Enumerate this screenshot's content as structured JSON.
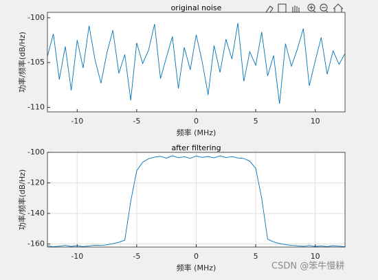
{
  "chart_data": [
    {
      "type": "line",
      "title": "original noise",
      "xlabel": "频率 (MHz)",
      "ylabel": "功率/频率(dB/Hz)",
      "x": [
        -12.5,
        -12,
        -11.5,
        -11,
        -10.5,
        -10,
        -9.5,
        -9,
        -8.5,
        -8,
        -7.5,
        -7,
        -6.5,
        -6,
        -5.5,
        -5,
        -4.5,
        -4,
        -3.5,
        -3,
        -2.5,
        -2,
        -1.5,
        -1,
        -0.5,
        0,
        0.5,
        1,
        1.5,
        2,
        2.5,
        3,
        3.5,
        4,
        4.5,
        5,
        5.5,
        6,
        6.5,
        7,
        7.5,
        8,
        8.5,
        9,
        9.5,
        10,
        10.5,
        11,
        11.5,
        12,
        12.5
      ],
      "series": [
        {
          "color": "#0072bd",
          "values": [
            -104.3,
            -101.8,
            -106.9,
            -103.2,
            -108.1,
            -102.5,
            -105.6,
            -100.9,
            -104.7,
            -107.3,
            -103.9,
            -101.4,
            -106.2,
            -104.1,
            -109.2,
            -102.8,
            -105.1,
            -103.6,
            -100.7,
            -106.8,
            -104.4,
            -102.1,
            -107.9,
            -103.3,
            -105.8,
            -101.9,
            -104.9,
            -108.6,
            -103.1,
            -106.1,
            -102.4,
            -104.6,
            -100.6,
            -107.1,
            -103.8,
            -105.3,
            -101.6,
            -106.5,
            -104.2,
            -109.6,
            -102.9,
            -105.4,
            -103.5,
            -101.2,
            -107.6,
            -104.8,
            -102.2,
            -106.3,
            -103.7,
            -105.2,
            -104.0
          ]
        }
      ],
      "xlim": [
        -12.5,
        12.5
      ],
      "xticks": [
        -10,
        -5,
        0,
        5,
        10
      ],
      "ylim": [
        -110.5,
        -99.4
      ],
      "yticks": [
        -110,
        -105,
        -100
      ],
      "grid": false
    },
    {
      "type": "line",
      "title": "after filtering",
      "xlabel": "频率 (MHz)",
      "ylabel": "功率/频率(dB/Hz)",
      "x": [
        -12.5,
        -12,
        -11.5,
        -11,
        -10.5,
        -10,
        -9.5,
        -9,
        -8.5,
        -8,
        -7.5,
        -7,
        -6.5,
        -6,
        -5.5,
        -5,
        -4.5,
        -4,
        -3.5,
        -3,
        -2.5,
        -2,
        -1.5,
        -1,
        -0.5,
        0,
        0.5,
        1,
        1.5,
        2,
        2.5,
        3,
        3.5,
        4,
        4.5,
        5,
        5.5,
        6,
        6.5,
        7,
        7.5,
        8,
        8.5,
        9,
        9.5,
        10,
        10.5,
        11,
        11.5,
        12,
        12.5
      ],
      "series": [
        {
          "color": "#0072bd",
          "values": [
            -161.2,
            -161.8,
            -161.4,
            -160.9,
            -161.6,
            -161.1,
            -161.7,
            -161.3,
            -160.8,
            -161.0,
            -160.5,
            -159.8,
            -158.9,
            -157.5,
            -132,
            -112,
            -106.5,
            -104.2,
            -103.1,
            -102.6,
            -103.8,
            -102.2,
            -103.5,
            -102.9,
            -103.9,
            -102.4,
            -103.3,
            -102.7,
            -103.6,
            -102.3,
            -103.4,
            -102.8,
            -103.7,
            -104.0,
            -105.8,
            -110.5,
            -130,
            -156.8,
            -158.6,
            -159.7,
            -160.4,
            -160.9,
            -161.2,
            -161.5,
            -161.0,
            -161.6,
            -161.3,
            -161.7,
            -161.1,
            -161.4,
            -161.8
          ]
        }
      ],
      "xlim": [
        -12.5,
        12.5
      ],
      "xticks": [
        -10,
        -5,
        0,
        5,
        10
      ],
      "ylim": [
        -162,
        -100
      ],
      "yticks": [
        -160,
        -140,
        -120,
        -100
      ],
      "grid": true
    }
  ],
  "watermark": "CSDN @笨牛慢耕"
}
